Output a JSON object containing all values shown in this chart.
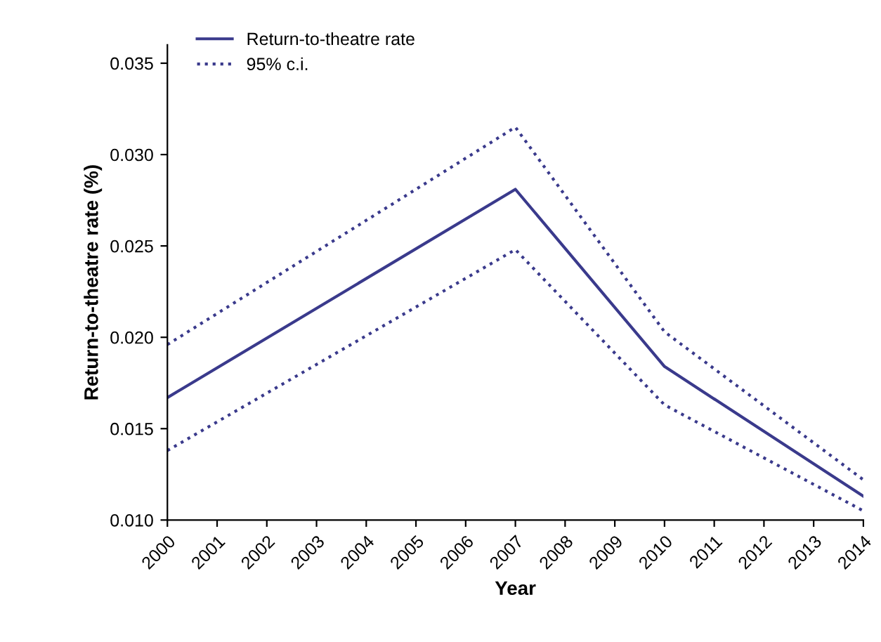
{
  "chart_data": {
    "type": "line",
    "xlabel": "Year",
    "ylabel": "Return-to-theatre rate (%)",
    "x": [
      2000,
      2007,
      2010,
      2014
    ],
    "series": [
      {
        "name": "Return-to-theatre rate",
        "color": "#3a3a8c",
        "line_style": "solid",
        "values": [
          0.0167,
          0.0281,
          0.0184,
          0.0113
        ]
      },
      {
        "name": "95% c.i.",
        "color": "#3a3a8c",
        "line_style": "dotted",
        "values": [
          0.0196,
          0.0315,
          0.0203,
          0.0122
        ]
      },
      {
        "color": "#3a3a8c",
        "line_style": "dotted",
        "values": [
          0.0138,
          0.0248,
          0.0163,
          0.0105
        ]
      }
    ],
    "xlim": [
      2000,
      2014
    ],
    "xticks": [
      2000,
      2001,
      2002,
      2003,
      2004,
      2005,
      2006,
      2007,
      2008,
      2009,
      2010,
      2011,
      2012,
      2013,
      2014
    ],
    "ylim": [
      0.01,
      0.036
    ],
    "yticks": [
      {
        "value": 0.01,
        "label": "0.010"
      },
      {
        "value": 0.015,
        "label": "0.015"
      },
      {
        "value": 0.02,
        "label": "0.020"
      },
      {
        "value": 0.025,
        "label": "0.025"
      },
      {
        "value": 0.03,
        "label": "0.030"
      },
      {
        "value": 0.035,
        "label": "0.035"
      }
    ],
    "grid": false,
    "legend": "top left",
    "marker": "none"
  }
}
